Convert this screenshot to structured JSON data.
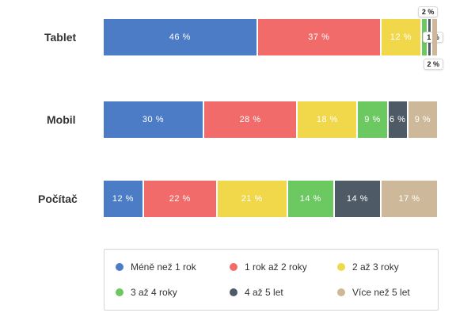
{
  "chart_data": {
    "type": "bar",
    "orientation": "horizontal",
    "stacked": true,
    "percent": true,
    "categories": [
      "Tablet",
      "Mobil",
      "Počítač"
    ],
    "series": [
      {
        "name": "Méně než 1 rok",
        "color": "#4d7cc7",
        "values": [
          46,
          30,
          12
        ],
        "labels": [
          "46 %",
          "30 %",
          "12 %"
        ]
      },
      {
        "name": "1 rok až 2 roky",
        "color": "#f26b6b",
        "values": [
          37,
          28,
          22
        ],
        "labels": [
          "37 %",
          "28 %",
          "22 %"
        ]
      },
      {
        "name": "2 až 3 roky",
        "color": "#f0d84a",
        "values": [
          12,
          18,
          21
        ],
        "labels": [
          "12 %",
          "18 %",
          "21 %"
        ]
      },
      {
        "name": "3 až 4 roky",
        "color": "#6cc962",
        "values": [
          2,
          9,
          14
        ],
        "labels": [
          "2 %",
          "9 %",
          "14 %"
        ]
      },
      {
        "name": "4 až 5 let",
        "color": "#4e5a66",
        "values": [
          1,
          6,
          14
        ],
        "labels": [
          "1 %",
          "6 %",
          "14 %"
        ]
      },
      {
        "name": "Více než 5 let",
        "color": "#cdb999",
        "values": [
          2,
          9,
          17
        ],
        "labels": [
          "2 %",
          "9 %",
          "17 %"
        ]
      }
    ],
    "legend_position": "bottom",
    "title": "",
    "xlabel": "",
    "ylabel": ""
  }
}
